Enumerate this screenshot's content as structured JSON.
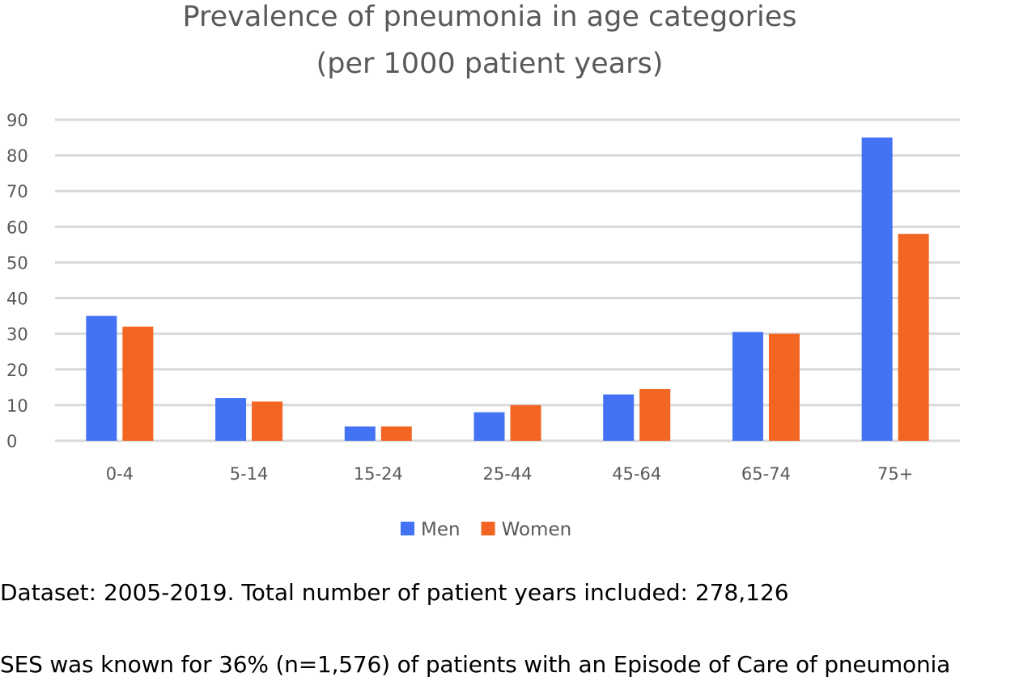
{
  "chart_data": {
    "type": "bar",
    "title": [
      "Prevalence of pneumonia in age categories",
      "(per 1000 patient years)"
    ],
    "categories": [
      "0-4",
      "5-14",
      "15-24",
      "25-44",
      "45-64",
      "65-74",
      "75+"
    ],
    "series": [
      {
        "name": "Men",
        "color": "#4472F4",
        "values": [
          35,
          12,
          4,
          8,
          13,
          30.5,
          85
        ]
      },
      {
        "name": "Women",
        "color": "#F26522",
        "values": [
          32,
          11,
          4,
          10,
          14.5,
          30,
          58
        ]
      }
    ],
    "ylim": [
      0,
      90
    ],
    "yticks": [
      "0",
      "10",
      "20",
      "30",
      "40",
      "50",
      "60",
      "70",
      "80",
      "90"
    ],
    "grid": true,
    "legend_position": "bottom"
  },
  "notes": [
    "Dataset: 2005-2019. Total number of patient years included: 278,126",
    "SES was known for 36% (n=1,576) of patients with an Episode of Care of pneumonia"
  ]
}
